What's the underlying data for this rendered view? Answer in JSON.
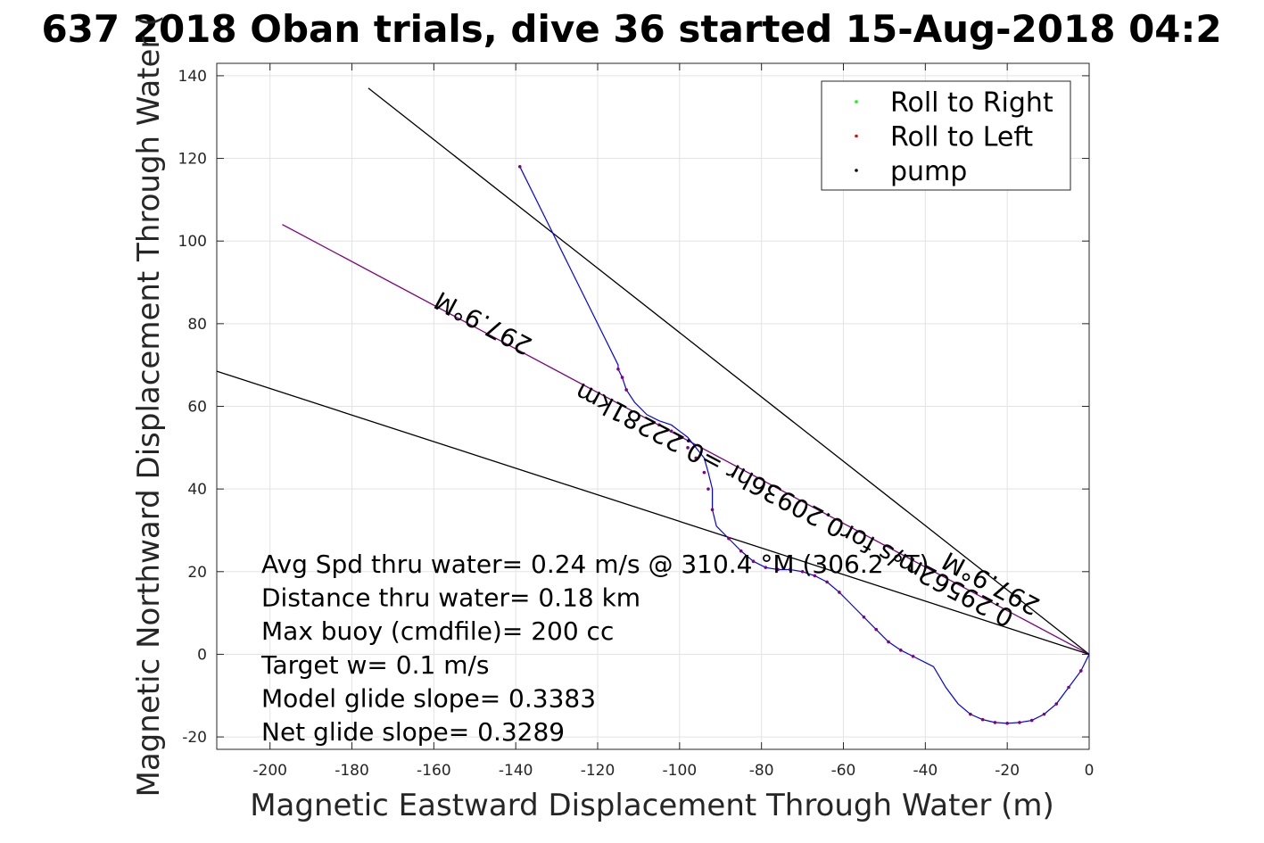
{
  "chart_data": {
    "type": "line",
    "title": "637 2018 Oban trials, dive 36 started 15-Aug-2018 04:2",
    "xlabel": "Magnetic Eastward Displacement Through Water (m)",
    "ylabel": "Magnetic Northward Displacement Through Water (",
    "xlim": [
      -213,
      0
    ],
    "ylim": [
      -23,
      143
    ],
    "xticks": [
      -200,
      -180,
      -160,
      -140,
      -120,
      -100,
      -80,
      -60,
      -40,
      -20,
      0
    ],
    "yticks": [
      -20,
      0,
      20,
      40,
      60,
      80,
      100,
      120,
      140
    ],
    "xtick_labels": [
      "-200",
      "-180",
      "-160",
      "-140",
      "-120",
      "-100",
      "-80",
      "-60",
      "-40",
      "-20",
      "0"
    ],
    "ytick_labels": [
      "-20",
      "0",
      "20",
      "40",
      "60",
      "80",
      "100",
      "120",
      "140"
    ],
    "grid": true,
    "legend_position": "top-right",
    "legend": [
      {
        "label": "Roll to Right",
        "color": "#00ff00"
      },
      {
        "label": "Roll to Left",
        "color": "#ff0000"
      },
      {
        "label": "pump",
        "color": "#000000"
      }
    ],
    "series": [
      {
        "name": "track",
        "color": "#0000ff",
        "x": [
          0,
          -2,
          -5,
          -8,
          -11,
          -14,
          -17,
          -20,
          -23,
          -26,
          -29,
          -32,
          -35,
          -38,
          -40,
          -43,
          -46,
          -49,
          -52,
          -55,
          -58,
          -61,
          -64,
          -67,
          -70,
          -73,
          -76,
          -79,
          -82,
          -85,
          -88,
          -91,
          -92,
          -92,
          -93,
          -94,
          -96,
          -98,
          -100,
          -102,
          -105,
          -108,
          -111,
          -113,
          -114,
          -115,
          -115,
          -127,
          -139
        ],
        "y": [
          0,
          -4,
          -8,
          -12,
          -14.5,
          -16,
          -16.5,
          -16.7,
          -16.5,
          -15.8,
          -14.5,
          -12,
          -8,
          -3,
          -2,
          -0.5,
          1,
          3,
          6,
          9,
          12,
          15,
          17.5,
          19,
          20,
          20.5,
          20.5,
          21,
          22.5,
          25,
          28,
          31,
          35,
          40,
          44,
          47.5,
          50,
          52.5,
          54,
          55.5,
          56.5,
          58,
          61,
          64,
          67,
          69,
          70,
          94,
          118
        ]
      },
      {
        "name": "track-markers",
        "color": "#800080",
        "x": [
          -2,
          -5,
          -8,
          -11,
          -14,
          -17,
          -20,
          -23,
          -26,
          -29,
          -43,
          -46,
          -49,
          -52,
          -55,
          -61,
          -64,
          -67,
          -70,
          -73,
          -76,
          -79,
          -82,
          -85,
          -88,
          -92,
          -93,
          -94,
          -96,
          -98,
          -100,
          -102,
          -105,
          -113,
          -114,
          -115,
          -139
        ],
        "y": [
          -4,
          -8,
          -12,
          -14.5,
          -16,
          -16.5,
          -16.7,
          -16.5,
          -15.8,
          -14.5,
          -0.5,
          1,
          3,
          6,
          9,
          15,
          17.5,
          19,
          20,
          20.5,
          20.5,
          21,
          22.5,
          25,
          28,
          35,
          40,
          44,
          47.5,
          50,
          52.5,
          54,
          55.5,
          64,
          67,
          69,
          118
        ]
      }
    ],
    "reference_lines": [
      {
        "name": "line-to-upper",
        "color": "#000000",
        "x": [
          0,
          -176
        ],
        "y": [
          0,
          137
        ]
      },
      {
        "name": "line-mean-heading",
        "color": "#800080",
        "x": [
          0,
          -197
        ],
        "y": [
          0,
          104
        ]
      },
      {
        "name": "line-lower",
        "color": "#000000",
        "x": [
          0,
          -213
        ],
        "y": [
          0,
          68.5
        ]
      }
    ],
    "annotations": [
      {
        "text": "297.9°M",
        "x": -147,
        "y": 82,
        "rotate": 207.9
      },
      {
        "text": "0.29562m/s for0.20936hr =0.22281km",
        "x": -71,
        "y": 38,
        "rotate": 207.9
      },
      {
        "text": "297.9°M",
        "x": -23,
        "y": 19,
        "rotate": 207.9
      }
    ],
    "stats": [
      "Avg Spd thru water=  0.24 m/s @ 310.4 °M (306.2 °T)",
      "Distance thru water=  0.18 km",
      "Max buoy (cmdfile)= 200 cc",
      "Target w= 0.1 m/s",
      "Model glide slope= 0.3383",
      "Net glide slope= 0.3289"
    ]
  }
}
